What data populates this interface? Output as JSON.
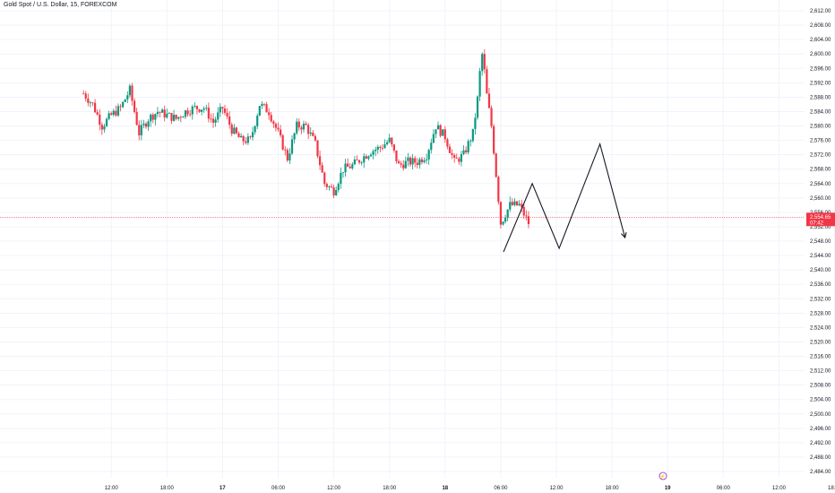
{
  "header": {
    "title": "Gold Spot / U.S. Dollar, 15, FOREXCOM"
  },
  "colors": {
    "up": "#089981",
    "down": "#f23645",
    "grid": "#f0f3fa",
    "price_line": "#f23645",
    "projection": "#131722",
    "event": "#9c27b0"
  },
  "price_tag": {
    "value": "2,554.65",
    "countdown": "07:42"
  },
  "event_marker": {
    "glyph": "⚡"
  },
  "chart_data": {
    "type": "candlestick",
    "symbol": "Gold Spot / U.S. Dollar",
    "interval": "15",
    "exchange": "FOREXCOM",
    "ylim": [
      2482,
      2614
    ],
    "y_tick_values": [
      2484,
      2488,
      2492,
      2496,
      2500,
      2504,
      2508,
      2512,
      2516,
      2520,
      2524,
      2528,
      2532,
      2536,
      2540,
      2544,
      2548,
      2552,
      2556,
      2560,
      2564,
      2568,
      2572,
      2576,
      2580,
      2584,
      2588,
      2592,
      2596,
      2600,
      2604,
      2608,
      2612
    ],
    "y_tick_labels": [
      "2,484.00",
      "2,488.00",
      "2,492.00",
      "2,496.00",
      "2,500.00",
      "2,504.00",
      "2,508.00",
      "2,512.00",
      "2,516.00",
      "2,520.00",
      "2,524.00",
      "2,528.00",
      "2,532.00",
      "2,536.00",
      "2,540.00",
      "2,544.00",
      "2,548.00",
      "2,552.00",
      "2,556.00",
      "2,560.00",
      "2,564.00",
      "2,568.00",
      "2,572.00",
      "2,576.00",
      "2,580.00",
      "2,584.00",
      "2,588.00",
      "2,592.00",
      "2,596.00",
      "2,600.00",
      "2,604.00",
      "2,608.00",
      "2,612.00"
    ],
    "x_ticks": [
      {
        "h": 12,
        "label": "12:00"
      },
      {
        "h": 18,
        "label": "18:00"
      },
      {
        "h": 24,
        "label": "17",
        "bold": true
      },
      {
        "h": 30,
        "label": "06:00"
      },
      {
        "h": 36,
        "label": "12:00"
      },
      {
        "h": 42,
        "label": "18:00"
      },
      {
        "h": 48,
        "label": "18",
        "bold": true
      },
      {
        "h": 54,
        "label": "06:00"
      },
      {
        "h": 60,
        "label": "12:00"
      },
      {
        "h": 66,
        "label": "18:00"
      },
      {
        "h": 72,
        "label": "19",
        "bold": true
      },
      {
        "h": 78,
        "label": "06:00"
      },
      {
        "h": 84,
        "label": "12:00"
      },
      {
        "h": 90,
        "label": "18:00"
      }
    ],
    "current_price": 2554.65,
    "close_path": [
      [
        9,
        2589
      ],
      [
        10,
        2586
      ],
      [
        11,
        2580
      ],
      [
        12,
        2583
      ],
      [
        13,
        2585
      ],
      [
        14,
        2590
      ],
      [
        15,
        2578
      ],
      [
        16,
        2582
      ],
      [
        17,
        2584
      ],
      [
        18,
        2583
      ],
      [
        19,
        2582
      ],
      [
        20,
        2584
      ],
      [
        21,
        2585
      ],
      [
        22,
        2585
      ],
      [
        23,
        2581
      ],
      [
        24,
        2585
      ],
      [
        25,
        2579
      ],
      [
        26,
        2576
      ],
      [
        27,
        2576
      ],
      [
        28,
        2586
      ],
      [
        29,
        2584
      ],
      [
        30,
        2578
      ],
      [
        31,
        2571
      ],
      [
        32,
        2580
      ],
      [
        33,
        2580
      ],
      [
        34,
        2575
      ],
      [
        35,
        2564
      ],
      [
        36,
        2562
      ],
      [
        37,
        2568
      ],
      [
        38,
        2569
      ],
      [
        39,
        2571
      ],
      [
        40,
        2573
      ],
      [
        41,
        2574
      ],
      [
        42,
        2576
      ],
      [
        43,
        2569
      ],
      [
        44,
        2570
      ],
      [
        45,
        2570
      ],
      [
        46,
        2572
      ],
      [
        47,
        2580
      ],
      [
        48,
        2577
      ],
      [
        49,
        2570
      ],
      [
        50,
        2572
      ],
      [
        51,
        2578
      ],
      [
        52,
        2597
      ],
      [
        53,
        2580
      ],
      [
        54,
        2553
      ],
      [
        55,
        2558
      ],
      [
        56,
        2558
      ],
      [
        57,
        2553
      ]
    ],
    "projection_path": [
      [
        54.3,
        2545
      ],
      [
        57.4,
        2564
      ],
      [
        60.3,
        2546
      ],
      [
        64.7,
        2575
      ],
      [
        67.4,
        2549
      ]
    ],
    "event_hour": 71.5
  }
}
